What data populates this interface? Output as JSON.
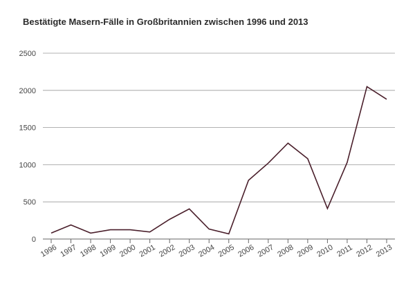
{
  "chart_data": {
    "type": "line",
    "title": "Bestätigte Masern-Fälle in Großbritannien zwischen 1996 und 2013",
    "xlabel": "",
    "ylabel": "",
    "categories": [
      "1996",
      "1997",
      "1998",
      "1999",
      "2000",
      "2001",
      "2002",
      "2003",
      "2004",
      "2005",
      "2006",
      "2007",
      "2008",
      "2009",
      "2010",
      "2011",
      "2012",
      "2013"
    ],
    "series": [
      {
        "values": [
          80,
          190,
          80,
          125,
          125,
          95,
          265,
          405,
          135,
          70,
          790,
          1020,
          1290,
          1080,
          410,
          1030,
          2050,
          1880
        ]
      }
    ],
    "ylim": [
      0,
      2500
    ],
    "yticks": [
      0,
      500,
      1000,
      1500,
      2000,
      2500
    ],
    "grid": true,
    "legend": "none",
    "colors": {
      "line": "#4a1f2b",
      "grid": "#999999",
      "axis": "#666666"
    }
  }
}
